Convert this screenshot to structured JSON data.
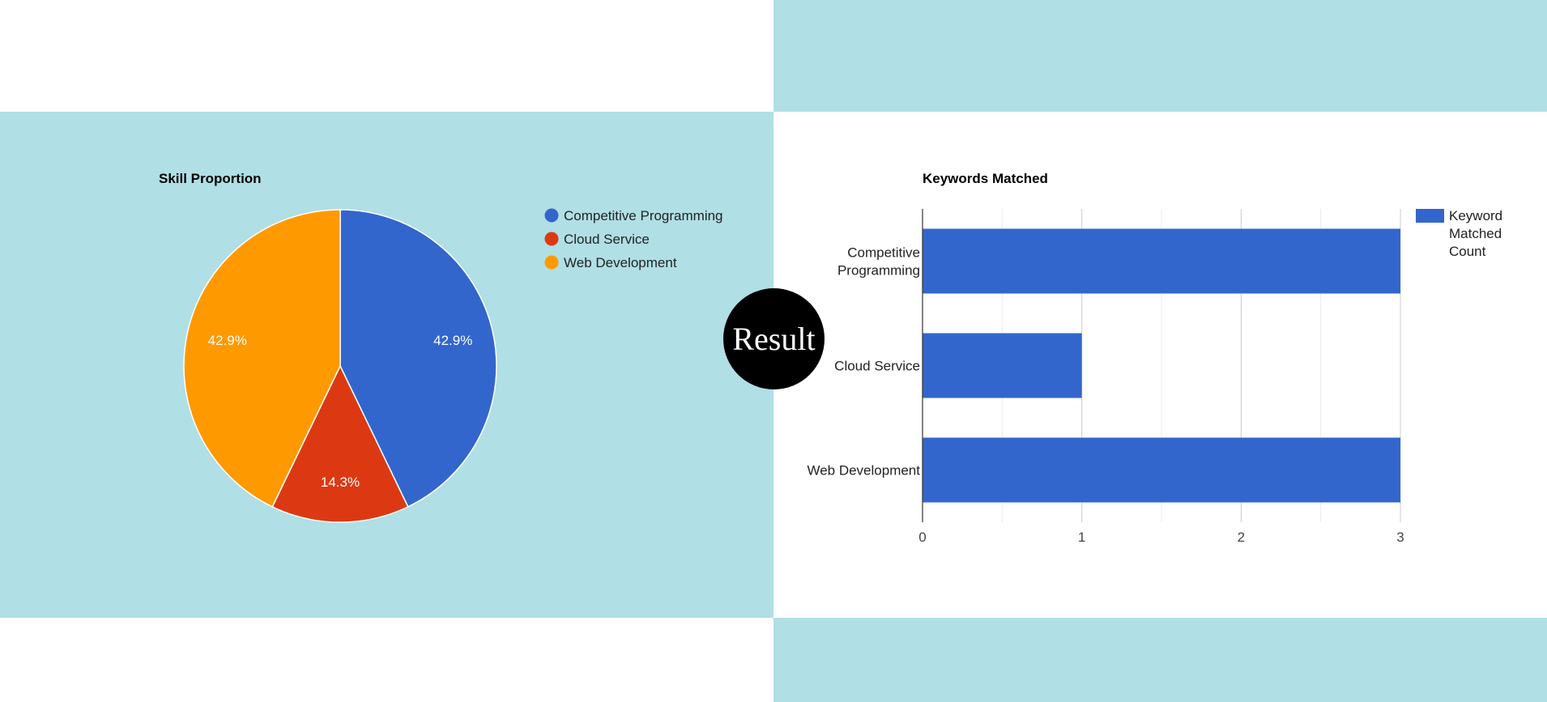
{
  "badge": {
    "label": "Result"
  },
  "colors": {
    "panel_background": "#b0dfe5",
    "page_background": "#ffffff",
    "badge_background": "#000000"
  },
  "chart_data": [
    {
      "type": "pie",
      "title": "Skill Proportion",
      "categories": [
        "Competitive Programming",
        "Cloud Service",
        "Web Development"
      ],
      "values": [
        3,
        1,
        3
      ],
      "colors": [
        "#3366cc",
        "#dc3912",
        "#ff9900"
      ],
      "slice_labels": [
        "42.9%",
        "14.3%",
        "42.9%"
      ],
      "legend": "right"
    },
    {
      "type": "bar",
      "orientation": "horizontal",
      "title": "Keywords Matched",
      "categories": [
        "Competitive Programming",
        "Cloud Service",
        "Web Development"
      ],
      "category_lines": [
        [
          "Competitive",
          "Programming"
        ],
        [
          "Cloud Service"
        ],
        [
          "Web Development"
        ]
      ],
      "series": [
        {
          "name": "Keyword Matched Count",
          "name_lines": [
            "Keyword",
            "Matched",
            "Count"
          ],
          "values": [
            3,
            1,
            3
          ],
          "color": "#3366cc"
        }
      ],
      "xlim": [
        0,
        3
      ],
      "xticks": [
        "0",
        "1",
        "2",
        "3"
      ],
      "grid": true,
      "legend": "right"
    }
  ]
}
